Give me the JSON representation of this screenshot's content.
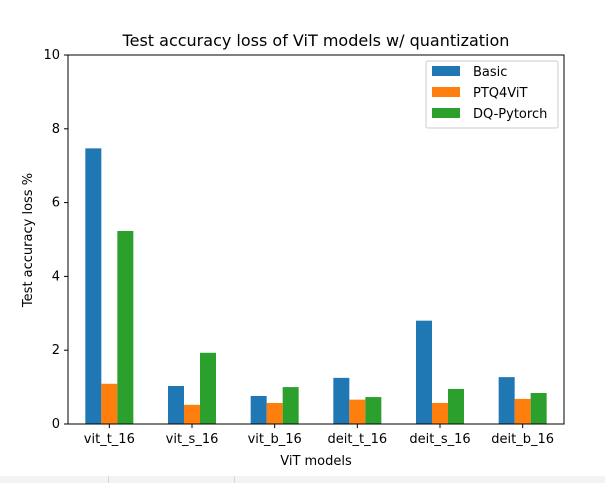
{
  "chart_data": {
    "type": "bar",
    "title": "Test accuracy loss of ViT models w/ quantization",
    "xlabel": "ViT models",
    "ylabel": "Test accuracy loss %",
    "ylim": [
      0,
      10
    ],
    "yticks": [
      "0",
      "2",
      "4",
      "6",
      "8",
      "10"
    ],
    "categories": [
      "vit_t_16",
      "vit_s_16",
      "vit_b_16",
      "deit_t_16",
      "deit_s_16",
      "deit_b_16"
    ],
    "series": [
      {
        "name": "Basic",
        "color": "#1f77b4",
        "values": [
          7.47,
          1.03,
          0.76,
          1.25,
          2.8,
          1.27
        ]
      },
      {
        "name": "PTQ4ViT",
        "color": "#ff7f0e",
        "values": [
          1.09,
          0.52,
          0.57,
          0.66,
          0.57,
          0.68
        ]
      },
      {
        "name": "DQ-Pytorch",
        "color": "#2ca02c",
        "values": [
          5.23,
          1.93,
          1.0,
          0.73,
          0.95,
          0.84
        ]
      }
    ],
    "legend_position": "top-right",
    "grid": false
  }
}
